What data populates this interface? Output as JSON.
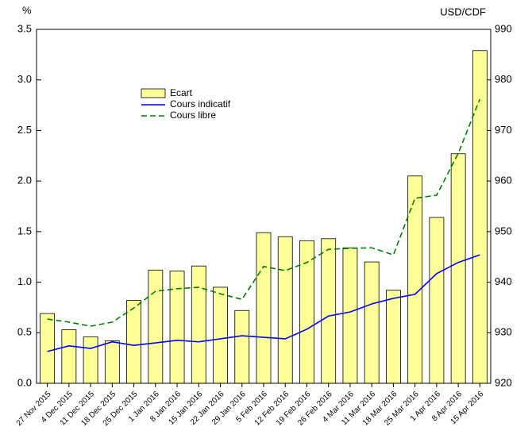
{
  "chart_data": {
    "type": "bar_line",
    "ylabel": "%",
    "y2label": "USD/CDF",
    "categories": [
      "27 Nov 2015",
      "4 Dec 2015",
      "11 Dec 2015",
      "18 Dec 2015",
      "25 Dec 2015",
      "1 Jan 2016",
      "8 Jan 2016",
      "15 Jan 2016",
      "22 Jan 2016",
      "29 Jan 2016",
      "5 Feb 2016",
      "12 Feb 2016",
      "19 Feb 2016",
      "26 Feb 2016",
      "4 Mar 2016",
      "11 Mar 2016",
      "18 Mar 2016",
      "25 Mar 2016",
      "1 Apr 2016",
      "8 Apr 2016",
      "15 Apr 2016"
    ],
    "series": [
      {
        "name": "Ecart",
        "kind": "bar",
        "color": "#ffff99",
        "values": [
          0.69,
          0.53,
          0.46,
          0.42,
          0.82,
          1.12,
          1.11,
          1.16,
          0.95,
          0.72,
          1.49,
          1.45,
          1.41,
          1.43,
          1.34,
          1.2,
          0.92,
          2.05,
          1.64,
          2.27,
          3.29
        ]
      },
      {
        "name": "Cours indicatif",
        "kind": "line",
        "axis": "y2",
        "color": "#0000ff",
        "values": [
          926.3,
          927.4,
          926.9,
          928.2,
          927.5,
          928.0,
          928.5,
          928.2,
          928.8,
          929.4,
          929.1,
          928.8,
          930.7,
          933.3,
          934.1,
          935.7,
          936.8,
          937.6,
          941.7,
          943.9,
          945.4
        ]
      },
      {
        "name": "Cours libre",
        "kind": "line",
        "dashed": true,
        "axis": "y2",
        "color": "#008000",
        "values": [
          932.7,
          932.1,
          931.3,
          932.1,
          934.9,
          938.2,
          938.7,
          939.0,
          937.7,
          936.6,
          943.1,
          942.3,
          943.9,
          946.5,
          946.7,
          946.8,
          945.4,
          956.6,
          957.2,
          965.5,
          976.2
        ]
      }
    ],
    "ylim": [
      0,
      3.5
    ],
    "yticks": [
      {
        "value": 0,
        "label": "0.0"
      },
      0.5,
      {
        "value": 1,
        "label": "1.0"
      },
      1.5,
      {
        "value": 2,
        "label": "2.0"
      },
      2.5,
      {
        "value": 3,
        "label": "3.0"
      },
      3.5
    ],
    "y2lim": [
      920,
      990
    ],
    "y2ticks": [
      920,
      930,
      940,
      950,
      960,
      970,
      980,
      990
    ],
    "legend": "upper left"
  }
}
